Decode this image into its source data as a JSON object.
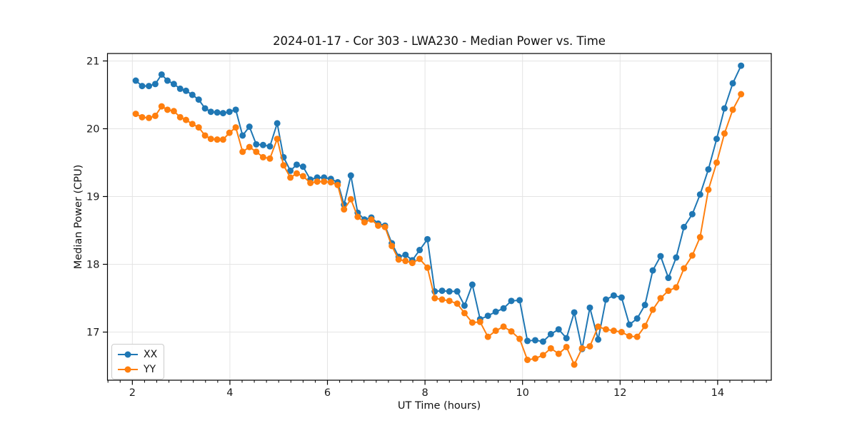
{
  "chart_data": {
    "type": "line",
    "title": "2024-01-17 - Cor 303 - LWA230 - Median Power vs. Time",
    "xlabel": "UT Time (hours)",
    "ylabel": "Median Power (CPU)",
    "xlim": [
      1.49,
      15.1
    ],
    "ylim": [
      16.29,
      21.11
    ],
    "xticks": [
      2,
      4,
      6,
      8,
      10,
      12,
      14
    ],
    "yticks": [
      17,
      18,
      19,
      20,
      21
    ],
    "x_minor_tick_step": 0.25,
    "grid": true,
    "legend_position": "lower left",
    "x": [
      2.07,
      2.2,
      2.34,
      2.47,
      2.6,
      2.72,
      2.85,
      2.98,
      3.1,
      3.23,
      3.36,
      3.49,
      3.61,
      3.74,
      3.86,
      3.99,
      4.12,
      4.26,
      4.4,
      4.54,
      4.68,
      4.82,
      4.97,
      5.1,
      5.24,
      5.37,
      5.5,
      5.65,
      5.79,
      5.93,
      6.07,
      6.21,
      6.34,
      6.48,
      6.62,
      6.76,
      6.9,
      7.04,
      7.18,
      7.32,
      7.46,
      7.6,
      7.74,
      7.89,
      8.05,
      8.2,
      8.35,
      8.5,
      8.66,
      8.81,
      8.97,
      9.13,
      9.29,
      9.45,
      9.61,
      9.77,
      9.94,
      10.1,
      10.26,
      10.42,
      10.58,
      10.74,
      10.9,
      11.06,
      11.22,
      11.38,
      11.55,
      11.71,
      11.87,
      12.03,
      12.19,
      12.35,
      12.51,
      12.67,
      12.83,
      12.99,
      13.15,
      13.31,
      13.48,
      13.64,
      13.81,
      13.98,
      14.14,
      14.31,
      14.48
    ],
    "series": [
      {
        "name": "XX",
        "color": "#1f77b4",
        "marker": "circle",
        "values": [
          20.71,
          20.63,
          20.63,
          20.66,
          20.8,
          20.71,
          20.66,
          20.59,
          20.56,
          20.5,
          20.43,
          20.3,
          20.25,
          20.24,
          20.23,
          20.25,
          20.28,
          19.9,
          20.03,
          19.77,
          19.76,
          19.74,
          20.08,
          19.58,
          19.38,
          19.47,
          19.44,
          19.25,
          19.28,
          19.28,
          19.26,
          19.21,
          18.88,
          19.31,
          18.76,
          18.66,
          18.69,
          18.6,
          18.57,
          18.31,
          18.11,
          18.14,
          18.06,
          18.21,
          18.37,
          17.6,
          17.61,
          17.6,
          17.6,
          17.39,
          17.7,
          17.19,
          17.24,
          17.3,
          17.35,
          17.46,
          17.47,
          16.87,
          16.88,
          16.86,
          16.97,
          17.04,
          16.91,
          17.29,
          16.75,
          17.36,
          16.89,
          17.48,
          17.54,
          17.51,
          17.11,
          17.2,
          17.4,
          17.91,
          18.12,
          17.8,
          18.1,
          18.55,
          18.74,
          19.03,
          19.4,
          19.85,
          20.3,
          20.67,
          20.93
        ]
      },
      {
        "name": "YY",
        "color": "#ff7f0e",
        "marker": "circle",
        "values": [
          20.22,
          20.17,
          20.16,
          20.19,
          20.33,
          20.28,
          20.26,
          20.17,
          20.13,
          20.07,
          20.02,
          19.9,
          19.85,
          19.84,
          19.84,
          19.94,
          20.02,
          19.66,
          19.73,
          19.66,
          19.58,
          19.56,
          19.85,
          19.46,
          19.28,
          19.34,
          19.3,
          19.2,
          19.22,
          19.22,
          19.21,
          19.17,
          18.81,
          18.96,
          18.7,
          18.62,
          18.66,
          18.57,
          18.55,
          18.27,
          18.07,
          18.05,
          18.02,
          18.08,
          17.95,
          17.5,
          17.48,
          17.46,
          17.42,
          17.28,
          17.14,
          17.15,
          16.93,
          17.02,
          17.08,
          17.01,
          16.9,
          16.59,
          16.61,
          16.66,
          16.76,
          16.68,
          16.78,
          16.52,
          16.76,
          16.79,
          17.08,
          17.04,
          17.02,
          17.0,
          16.94,
          16.93,
          17.09,
          17.33,
          17.5,
          17.61,
          17.66,
          17.94,
          18.13,
          18.4,
          19.1,
          19.5,
          19.93,
          20.28,
          20.51
        ]
      }
    ],
    "style": {
      "grid_color": "#e4e4e4",
      "spine_color": "#000000",
      "tick_color": "#000000",
      "tick_label_color": "#1a1a1a",
      "line_width": 2,
      "marker_radius": 4.5
    }
  }
}
